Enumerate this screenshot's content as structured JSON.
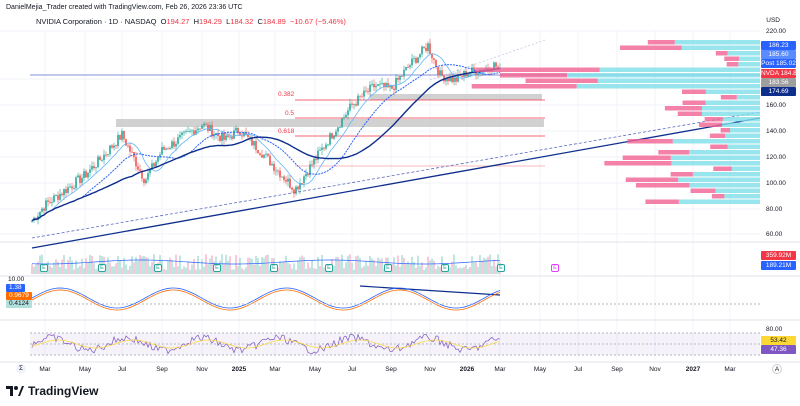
{
  "header": {
    "credit": "DanielMejia_Trader created with TradingView.com, Feb 26, 2026 23:36 UTC",
    "symbol": "NVIDIA Corporation · 1D · NASDAQ",
    "open_label": "O",
    "open": "194.27",
    "high_label": "H",
    "high": "194.29",
    "low_label": "L",
    "low": "184.32",
    "close_label": "C",
    "close": "184.89",
    "change": "−10.67 (−5.46%)"
  },
  "price_axis": {
    "currency": "USD",
    "ticks": [
      "220.00",
      "160.00",
      "140.00",
      "120.00",
      "100.00",
      "80.00",
      "60.00"
    ],
    "tags": [
      {
        "text": "186.23",
        "color": "#2962ff"
      },
      {
        "text": "185.60",
        "color": "#5b8cff"
      },
      {
        "text": "Post  185.02",
        "color": "#2962ff"
      },
      {
        "text": "NVDA  184.89",
        "color": "#f23645"
      },
      {
        "text": "183.56",
        "color": "#9e9e9e"
      },
      {
        "text": "174.69",
        "color": "#0d2e8c"
      }
    ]
  },
  "fibonacci": [
    {
      "level": "0.382"
    },
    {
      "level": "0.5"
    },
    {
      "level": "0.618"
    }
  ],
  "volume": {
    "tags": [
      {
        "text": "359.92M",
        "color": "#f23645"
      },
      {
        "text": "189.21M",
        "color": "#2962ff"
      }
    ],
    "earnings_badge": "E"
  },
  "macd": {
    "scale": "10.00",
    "tags": [
      {
        "text": "1.38",
        "color": "#2962ff"
      },
      {
        "text": "0.9679",
        "color": "#ff6d00"
      },
      {
        "text": "0.4124",
        "color": "#b2dfdb"
      }
    ]
  },
  "rsi": {
    "scale": "80.00",
    "tags": [
      {
        "text": "53.42",
        "color": "#fdd835"
      },
      {
        "text": "47.36",
        "color": "#7e57c2"
      }
    ]
  },
  "time_axis": [
    "Mar",
    "May",
    "Jul",
    "Sep",
    "Nov",
    "2025",
    "Mar",
    "May",
    "Jul",
    "Sep",
    "Nov",
    "2026",
    "Mar",
    "May",
    "Jul",
    "Sep",
    "Nov",
    "2027",
    "Mar"
  ],
  "branding": "TradingView",
  "colors": {
    "up": "#26a69a",
    "down": "#ef5350",
    "ma_fast": "#2962ff",
    "ma_slow": "#0d2e8c",
    "profile_up": "#80deea",
    "profile_down": "#f06292"
  },
  "chart_data": {
    "type": "line",
    "series": [
      {
        "x": [
          "2024-02",
          "2024-03",
          "2024-05",
          "2024-06",
          "2024-07",
          "2024-08",
          "2024-09",
          "2024-11",
          "2024-12",
          "2025-01",
          "2025-02",
          "2025-04",
          "2025-05",
          "2025-06",
          "2025-07",
          "2025-08",
          "2025-09",
          "2025-10",
          "2025-11",
          "2025-11-20",
          "2025-12",
          "2026-01",
          "2026-01-20",
          "2026-02",
          "2026-02-26"
        ],
        "values": [
          71,
          83,
          106,
          118,
          137,
          102,
          125,
          145,
          133,
          141,
          125,
          95,
          118,
          141,
          160,
          175,
          172,
          191,
          206,
          183,
          179,
          185,
          187,
          191,
          185
        ]
      }
    ],
    "ylim": [
      50,
      225
    ]
  }
}
